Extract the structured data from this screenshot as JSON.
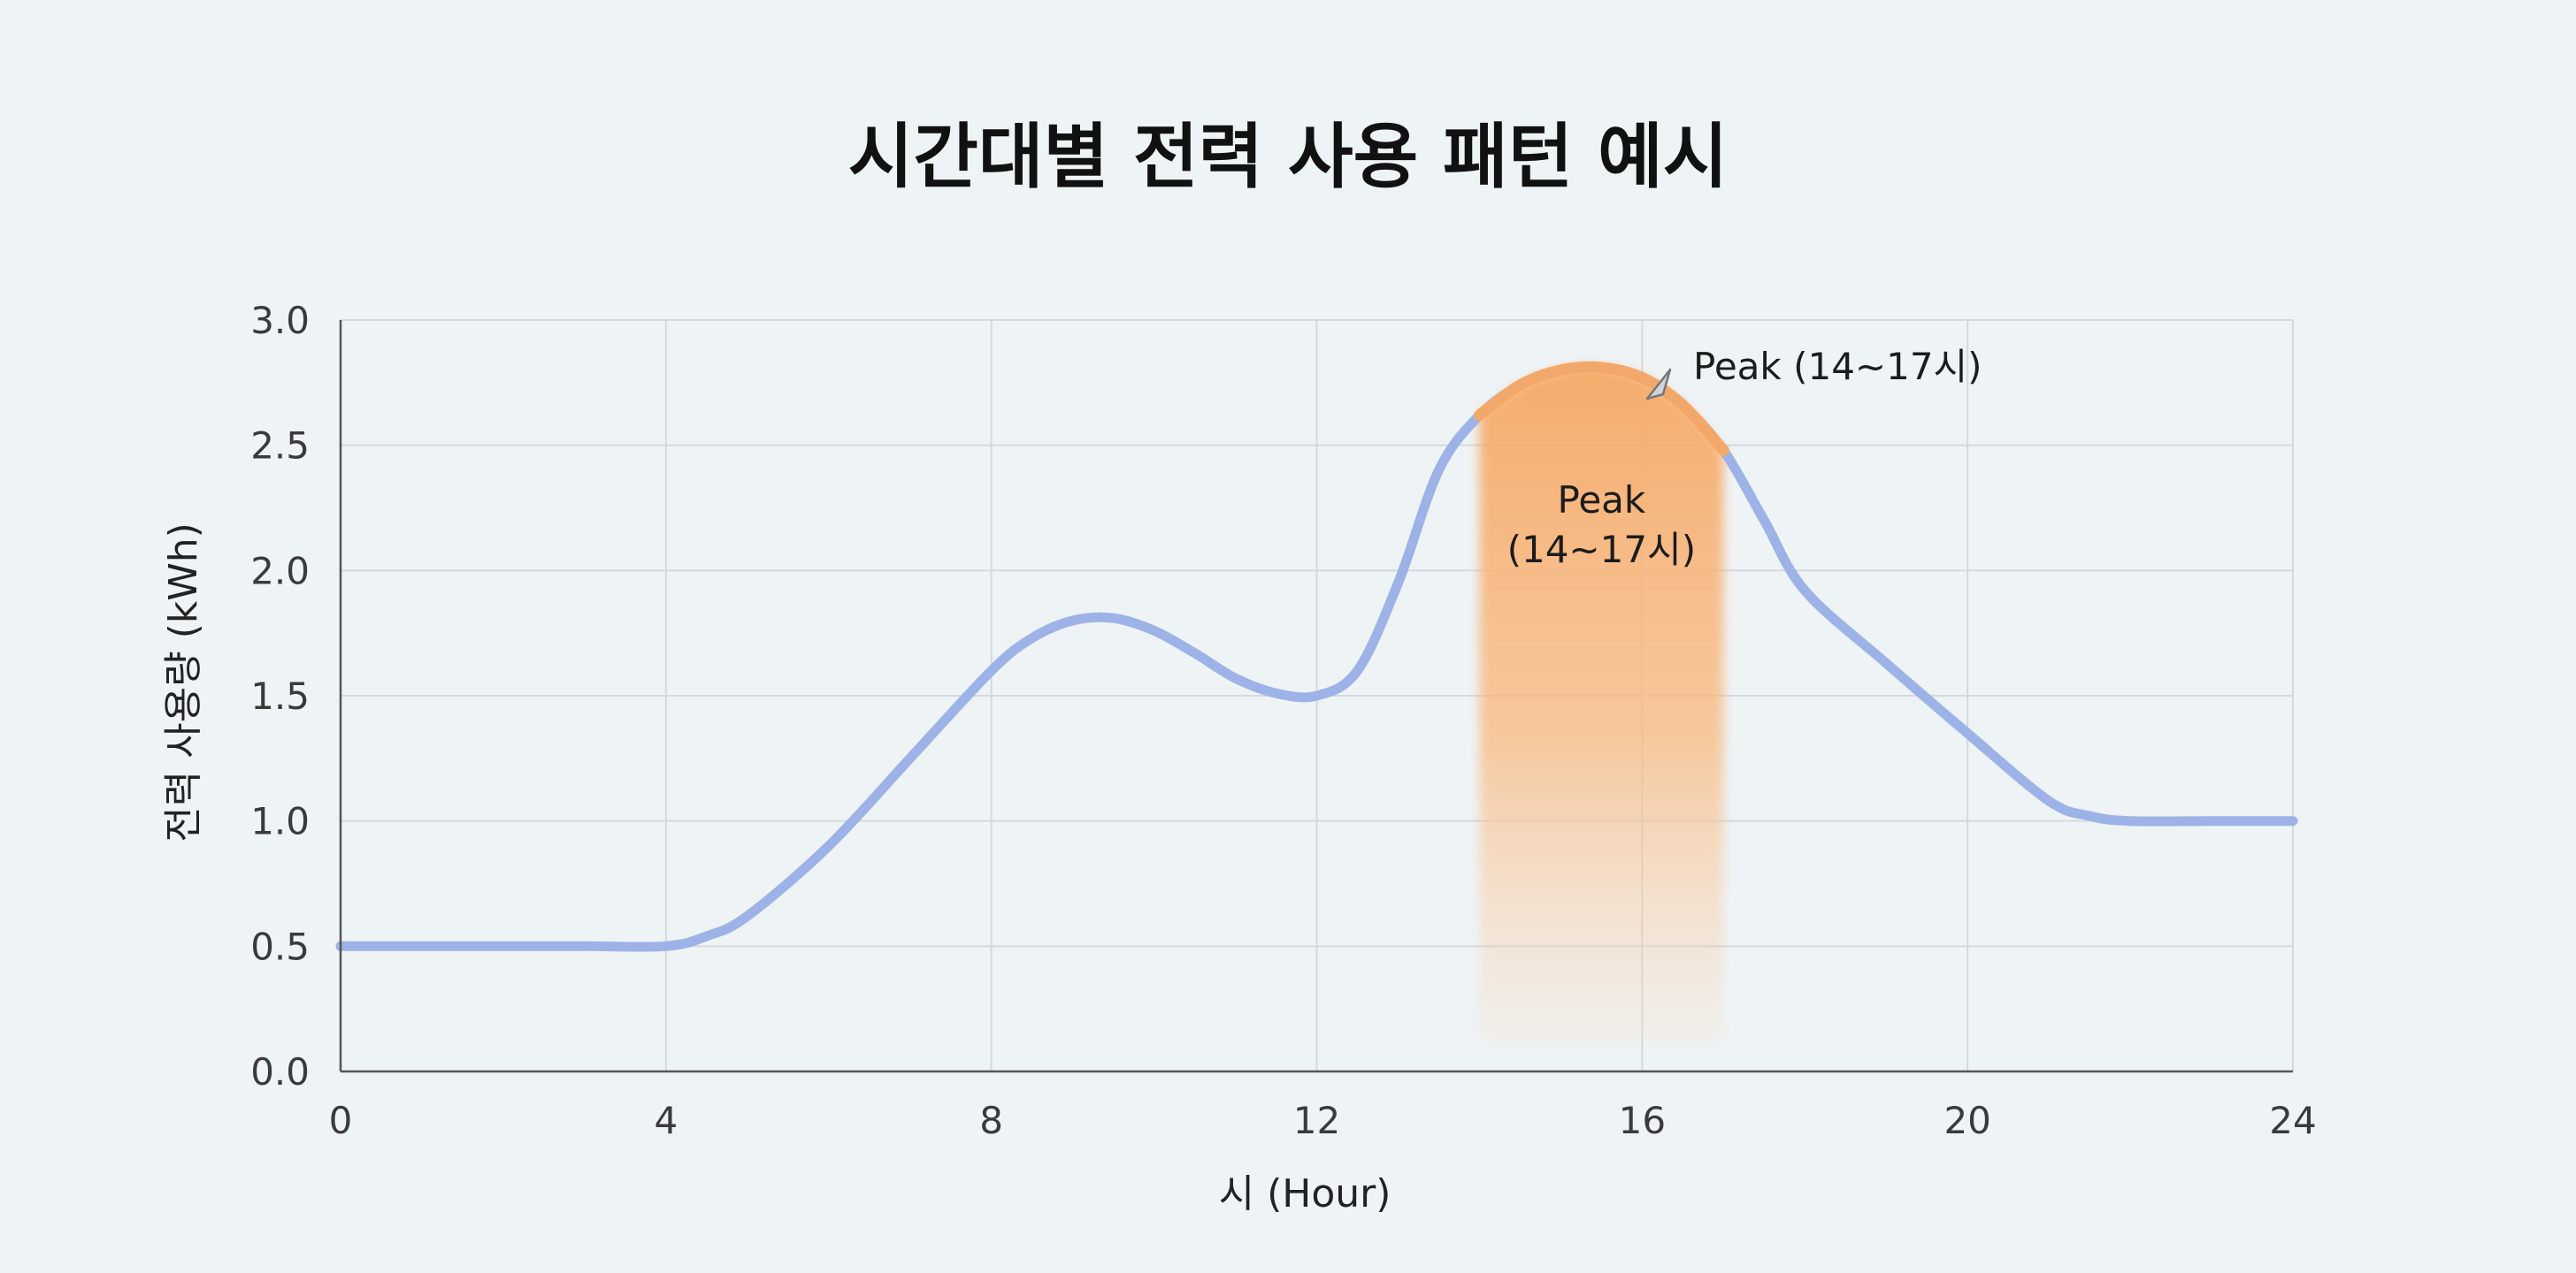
{
  "chart_data": {
    "type": "line",
    "title": "시간대별 전력 사용 패턴 예시",
    "xlabel": "시 (Hour)",
    "ylabel": "전력 사용량 (kWh)",
    "xlim": [
      0,
      24
    ],
    "ylim": [
      0,
      3
    ],
    "xticks": [
      "0",
      "4",
      "8",
      "12",
      "16",
      "20",
      "24"
    ],
    "yticks": [
      "0.0",
      "0.5",
      "1.0",
      "1.5",
      "2.0",
      "2.5",
      "3.0"
    ],
    "grid": true,
    "series": [
      {
        "color": "#9db2e6",
        "x": [
          0,
          1,
          2,
          3,
          4,
          4.5,
          5,
          6,
          7,
          8,
          8.5,
          9,
          9.5,
          10,
          10.5,
          11,
          11.5,
          12,
          12.5,
          13,
          13.5,
          14,
          14.5,
          15,
          15.5,
          16,
          16.5,
          17,
          17.5,
          18,
          19,
          20,
          21,
          21.5,
          22,
          23,
          24
        ],
        "y": [
          0.5,
          0.5,
          0.5,
          0.5,
          0.5,
          0.54,
          0.62,
          0.9,
          1.25,
          1.6,
          1.73,
          1.8,
          1.81,
          1.76,
          1.67,
          1.57,
          1.51,
          1.5,
          1.6,
          1.95,
          2.4,
          2.62,
          2.74,
          2.8,
          2.81,
          2.77,
          2.66,
          2.48,
          2.2,
          1.92,
          1.63,
          1.35,
          1.08,
          1.02,
          1.0,
          1.0,
          1.0
        ]
      }
    ],
    "peak_region": {
      "x_start": 14,
      "x_end": 17,
      "color": "#f7a864",
      "label_inside": [
        "Peak",
        "(14~17시)"
      ],
      "label_callout": "Peak (14~17시)"
    }
  }
}
